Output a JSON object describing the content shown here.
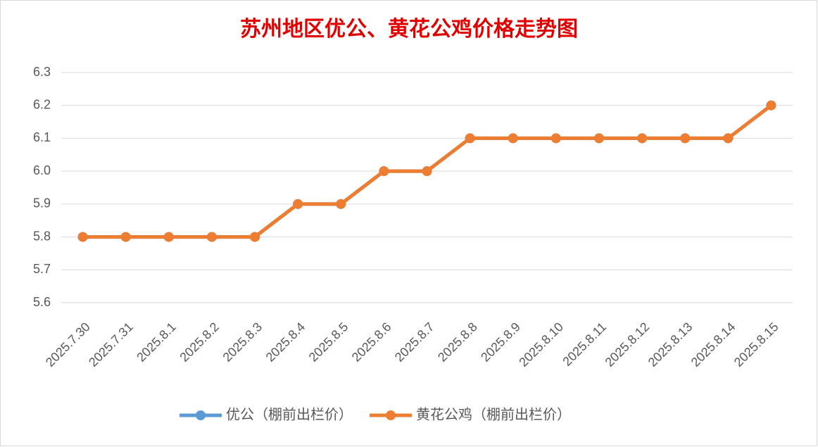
{
  "chart_data": {
    "type": "line",
    "title": "苏州地区优公、黄花公鸡价格走势图",
    "categories": [
      "2025.7.30",
      "2025.7.31",
      "2025.8.1",
      "2025.8.2",
      "2025.8.3",
      "2025.8.4",
      "2025.8.5",
      "2025.8.6",
      "2025.8.7",
      "2025.8.8",
      "2025.8.9",
      "2025.8.10",
      "2025.8.11",
      "2025.8.12",
      "2025.8.13",
      "2025.8.14",
      "2025.8.15"
    ],
    "series": [
      {
        "name": "优公（棚前出栏价）",
        "color": "#5b9bd5",
        "values": [
          5.8,
          5.8,
          5.8,
          5.8,
          5.8,
          5.9,
          5.9,
          6.0,
          6.0,
          6.1,
          6.1,
          6.1,
          6.1,
          6.1,
          6.1,
          6.1,
          6.2
        ]
      },
      {
        "name": "黄花公鸡（棚前出栏价）",
        "color": "#ed7d31",
        "values": [
          5.8,
          5.8,
          5.8,
          5.8,
          5.8,
          5.9,
          5.9,
          6.0,
          6.0,
          6.1,
          6.1,
          6.1,
          6.1,
          6.1,
          6.1,
          6.1,
          6.2
        ]
      }
    ],
    "ylim": [
      5.6,
      6.3
    ],
    "yticks": [
      5.6,
      5.7,
      5.8,
      5.9,
      {
        "value": 6,
        "label": "6.0"
      },
      6.1,
      6.2,
      6.3
    ],
    "grid": true,
    "legend": "bottom"
  }
}
